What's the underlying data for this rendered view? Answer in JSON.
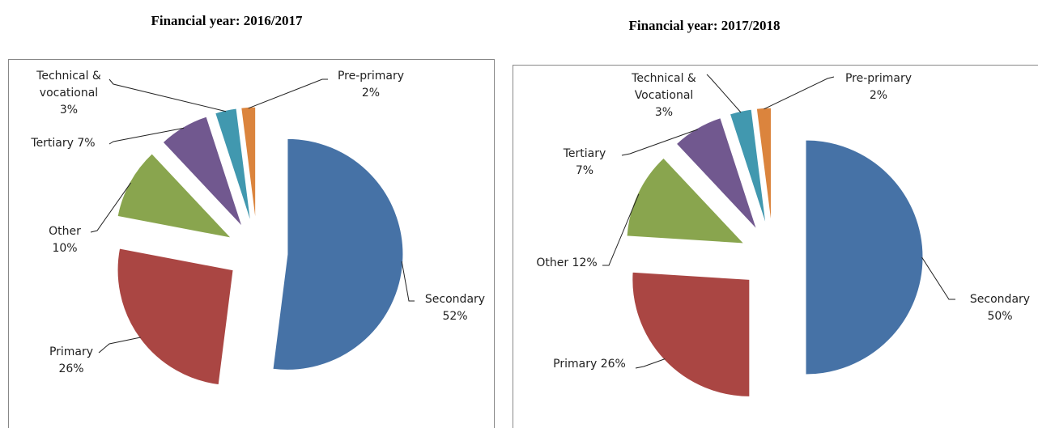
{
  "chart_data": [
    {
      "type": "pie",
      "title": "Financial year: 2016/2017",
      "categories": [
        "Secondary",
        "Primary",
        "Other",
        "Tertiary",
        "Technical & vocational",
        "Pre-primary"
      ],
      "values": [
        52,
        26,
        10,
        7,
        3,
        2
      ],
      "value_labels": [
        "52%",
        "26%",
        "10%",
        "7%",
        "3%",
        "2%"
      ],
      "colors": [
        "#4672a6",
        "#aa4643",
        "#89a54e",
        "#71588f",
        "#4198af",
        "#db843d"
      ]
    },
    {
      "type": "pie",
      "title": "Financial year: 2017/2018",
      "categories": [
        "Secondary",
        "Primary",
        "Other",
        "Tertiary",
        "Technical & Vocational",
        "Pre-primary"
      ],
      "values": [
        50,
        26,
        12,
        7,
        3,
        2
      ],
      "value_labels": [
        "50%",
        "26%",
        "12%",
        "7%",
        "3%",
        "2%"
      ],
      "colors": [
        "#4672a6",
        "#aa4643",
        "#89a54e",
        "#71588f",
        "#4198af",
        "#db843d"
      ]
    }
  ]
}
